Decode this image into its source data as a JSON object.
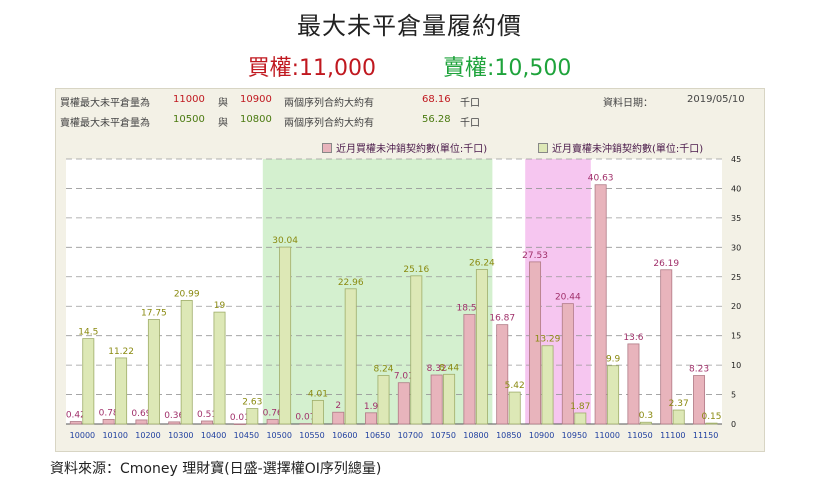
{
  "header": {
    "title": "最大未平倉量履約價",
    "call_label": "買權:11,000",
    "put_label": "賣權:10,500"
  },
  "info": {
    "call_row": {
      "prefix": "買權最大未平倉量為",
      "strike1": "11000",
      "and": "與",
      "strike2": "10900",
      "middle": "兩個序列合約大約有",
      "value": "68.16",
      "unit": "千口"
    },
    "put_row": {
      "prefix": "賣權最大未平倉量為",
      "strike1": "10500",
      "and": "與",
      "strike2": "10800",
      "middle": "兩個序列合約大約有",
      "value": "56.28",
      "unit": "千口"
    },
    "date_label": "資料日期：",
    "date_value": "2019/05/10"
  },
  "legend": {
    "call": "近月買權未沖銷契約數(單位:千口)",
    "put": "近月賣權未沖銷契約數(單位:千口)"
  },
  "source": "資料來源：Cmoney 理財寶(日盛-選擇權OI序列總量)",
  "colors": {
    "call_bar": "#e8b4bc",
    "put_bar": "#dde8b6",
    "call_text": "#a0306a",
    "put_text": "#8a8a10",
    "green_zone": "#d4f0cf",
    "pink_zone": "#f6c6f0"
  },
  "chart_data": {
    "type": "bar",
    "categories": [
      "10000",
      "10100",
      "10200",
      "10300",
      "10400",
      "10450",
      "10500",
      "10550",
      "10600",
      "10650",
      "10700",
      "10750",
      "10800",
      "10850",
      "10900",
      "10950",
      "11000",
      "11050",
      "11100",
      "11150"
    ],
    "series": [
      {
        "name": "近月買權未沖銷契約數(單位:千口)",
        "values": [
          0.42,
          0.78,
          0.69,
          0.36,
          0.51,
          0.01,
          0.76,
          0.07,
          2,
          1.9,
          7.01,
          8.32,
          18.59,
          16.87,
          27.53,
          20.44,
          40.63,
          13.6,
          26.19,
          8.23
        ]
      },
      {
        "name": "近月賣權未沖銷契約數(單位:千口)",
        "values": [
          14.5,
          11.22,
          17.75,
          20.99,
          19,
          2.63,
          30.04,
          4.01,
          22.96,
          8.24,
          25.16,
          8.44,
          26.24,
          5.42,
          13.29,
          1.87,
          9.9,
          0.3,
          2.37,
          0.15
        ]
      }
    ],
    "ylim": [
      0,
      45
    ],
    "yticks": [
      0,
      5,
      10,
      15,
      20,
      25,
      30,
      35,
      40,
      45
    ],
    "y_axis_side": "right",
    "grid": true,
    "legend_position": "top-right",
    "highlight_ranges": [
      {
        "from": "10500",
        "to": "10800",
        "color": "green"
      },
      {
        "from": "10900",
        "to": "10950",
        "color": "pink"
      }
    ]
  }
}
